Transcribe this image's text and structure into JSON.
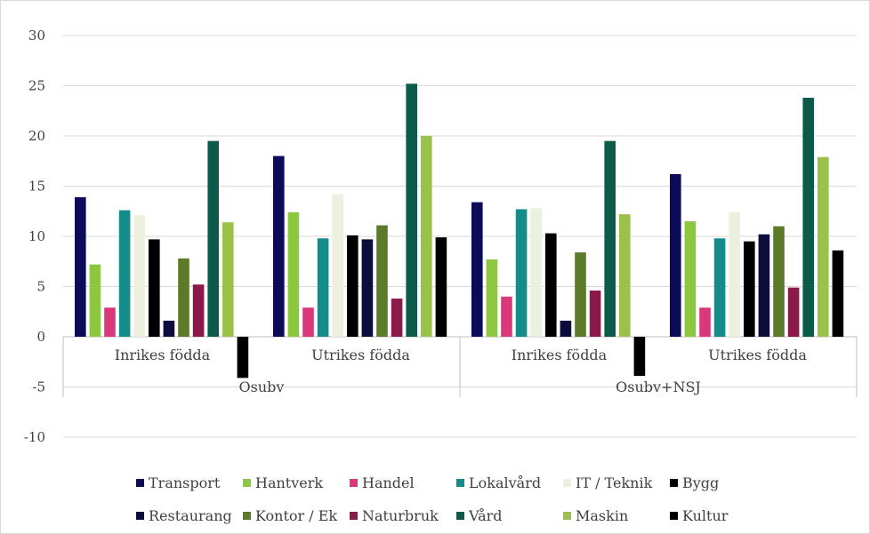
{
  "chart_data": {
    "type": "bar",
    "title": "",
    "xlabel": "",
    "ylabel": "",
    "ylim": [
      -10,
      30
    ],
    "yticks": [
      -10,
      -5,
      0,
      5,
      10,
      15,
      20,
      25,
      30
    ],
    "grid": true,
    "legend_position": "bottom",
    "group_labels": [
      "Osubv",
      "Osubv+NSJ"
    ],
    "categories": [
      "Inrikes födda",
      "Utrikes födda",
      "Inrikes födda",
      "Utrikes födda"
    ],
    "series": [
      {
        "name": "Transport",
        "color": "#0b0b5a",
        "values": [
          13.9,
          18.0,
          13.4,
          16.2
        ]
      },
      {
        "name": "Hantverk",
        "color": "#8dc63f",
        "values": [
          7.2,
          12.4,
          7.7,
          11.5
        ]
      },
      {
        "name": "Handel",
        "color": "#d9387a",
        "values": [
          2.9,
          2.9,
          4.0,
          2.9
        ]
      },
      {
        "name": "Lokalvård",
        "color": "#138c8a",
        "values": [
          12.6,
          9.8,
          12.7,
          9.8
        ]
      },
      {
        "name": "IT / Teknik",
        "color": "#ebf1de",
        "values": [
          12.1,
          14.2,
          12.8,
          12.4
        ]
      },
      {
        "name": "Bygg",
        "color": "#000000",
        "values": [
          9.7,
          10.1,
          10.3,
          9.5
        ]
      },
      {
        "name": "Restaurang",
        "color": "#0d0d3d",
        "values": [
          1.6,
          9.7,
          1.6,
          10.2
        ]
      },
      {
        "name": "Kontor / Ek",
        "color": "#5b7a2a",
        "values": [
          7.8,
          11.1,
          8.4,
          11.0
        ]
      },
      {
        "name": "Naturbruk",
        "color": "#8b1a4a",
        "values": [
          5.2,
          3.8,
          4.6,
          4.9
        ]
      },
      {
        "name": "Vård",
        "color": "#0b5a4a",
        "values": [
          19.5,
          25.2,
          19.5,
          23.8
        ]
      },
      {
        "name": "Maskin",
        "color": "#9ac24a",
        "values": [
          11.4,
          20.0,
          12.2,
          17.9
        ]
      },
      {
        "name": "Kultur",
        "color": "#000000",
        "values": [
          -4.1,
          9.9,
          -3.9,
          8.6
        ]
      }
    ]
  }
}
